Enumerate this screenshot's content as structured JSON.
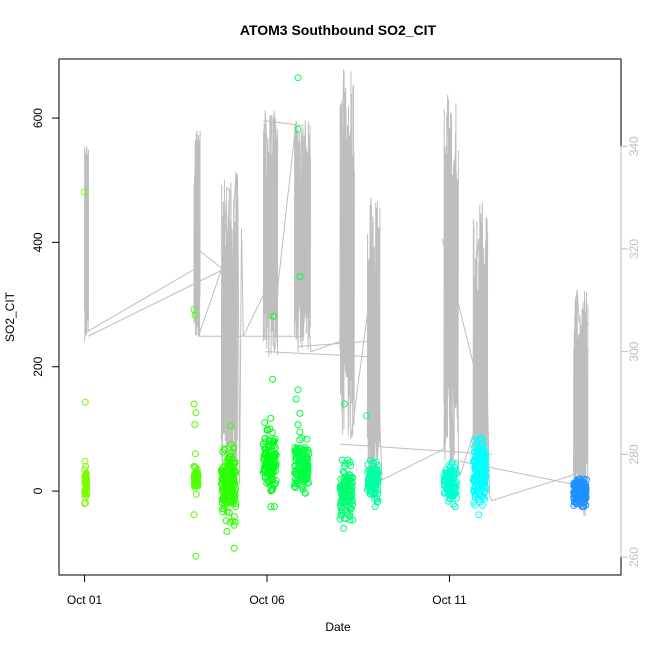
{
  "chart_data": {
    "type": "scatter",
    "title": "ATOM3 Southbound SO2_CIT",
    "xlabel": "Date",
    "ylabel": "SO2_CIT",
    "x_unit": "days from Oct 01",
    "xlim": [
      -0.7,
      14.7
    ],
    "ylim": [
      -135,
      695
    ],
    "x_ticks": [
      {
        "value": 0,
        "label": "Oct 01"
      },
      {
        "value": 5,
        "label": "Oct 06"
      },
      {
        "value": 10,
        "label": "Oct 11"
      }
    ],
    "y_ticks": [
      0,
      200,
      400,
      600
    ],
    "y2lim": [
      256.5,
      357
    ],
    "y2_ticks": [
      260,
      280,
      300,
      320,
      340
    ],
    "y2_color": "#bebebe",
    "colors": {
      "line": "#bebebe",
      "point_palette": [
        "#7cfc00",
        "#00ff40",
        "#00ff9f",
        "#00ffff",
        "#1e90ff"
      ]
    },
    "flights": [
      {
        "x_start": 0.0,
        "x_end": 0.06,
        "y_min": -20,
        "y_max": 48,
        "count": 45,
        "color": "#7cfc00",
        "extremes": [
          [
            0.0,
            481
          ],
          [
            0.02,
            143
          ]
        ]
      },
      {
        "x_start": 3.0,
        "x_end": 3.12,
        "y_min": -5,
        "y_max": 40,
        "count": 45,
        "color": "#52ff00",
        "extremes": [
          [
            3.0,
            292
          ],
          [
            3.03,
            283
          ],
          [
            3.0,
            140
          ],
          [
            3.05,
            126
          ],
          [
            3.02,
            107
          ],
          [
            3.04,
            60
          ],
          [
            3.0,
            -38
          ],
          [
            3.05,
            -105
          ]
        ]
      },
      {
        "x_start": 3.75,
        "x_end": 4.15,
        "y_min": -50,
        "y_max": 70,
        "count": 160,
        "color": "#2bff00",
        "extremes": [
          [
            4.0,
            105
          ],
          [
            4.02,
            75
          ],
          [
            4.1,
            -92
          ],
          [
            3.9,
            -65
          ],
          [
            4.1,
            -55
          ]
        ]
      },
      {
        "x_start": 4.9,
        "x_end": 5.25,
        "y_min": -25,
        "y_max": 110,
        "count": 120,
        "color": "#00ff1a",
        "extremes": [
          [
            5.18,
            281
          ],
          [
            5.15,
            180
          ],
          [
            5.1,
            117
          ],
          [
            5.08,
            100
          ],
          [
            5.0,
            98
          ],
          [
            5.2,
            80
          ]
        ]
      },
      {
        "x_start": 5.75,
        "x_end": 6.15,
        "y_min": -5,
        "y_max": 85,
        "count": 130,
        "color": "#00ff40",
        "extremes": [
          [
            5.85,
            665
          ],
          [
            5.85,
            582
          ],
          [
            5.9,
            345
          ],
          [
            5.85,
            163
          ],
          [
            5.8,
            148
          ],
          [
            5.9,
            125
          ],
          [
            5.85,
            107
          ],
          [
            5.9,
            95
          ]
        ]
      },
      {
        "x_start": 7.0,
        "x_end": 7.35,
        "y_min": -55,
        "y_max": 50,
        "count": 120,
        "color": "#00ff70",
        "extremes": [
          [
            7.12,
            140
          ],
          [
            7.1,
            -60
          ],
          [
            7.0,
            -45
          ],
          [
            7.05,
            -35
          ]
        ]
      },
      {
        "x_start": 7.75,
        "x_end": 8.05,
        "y_min": -25,
        "y_max": 60,
        "count": 110,
        "color": "#00ffa0",
        "extremes": [
          [
            7.72,
            121
          ]
        ]
      },
      {
        "x_start": 9.85,
        "x_end": 10.2,
        "y_min": -25,
        "y_max": 48,
        "count": 100,
        "color": "#00ffcf",
        "extremes": [
          [
            10.15,
            42
          ]
        ]
      },
      {
        "x_start": 10.65,
        "x_end": 11.0,
        "y_min": -35,
        "y_max": 90,
        "count": 170,
        "color": "#00ffff",
        "extremes": [
          [
            10.85,
            85
          ],
          [
            10.9,
            75
          ],
          [
            10.8,
            -38
          ]
        ]
      },
      {
        "x_start": 13.4,
        "x_end": 13.75,
        "y_min": -25,
        "y_max": 22,
        "count": 170,
        "color": "#1e90ff",
        "extremes": []
      }
    ],
    "line_series": {
      "name": "",
      "scale": "right",
      "points": [
        [
          0.0,
          302
        ],
        [
          0.03,
          305
        ],
        [
          0.04,
          338
        ],
        [
          0.06,
          340
        ],
        [
          0.08,
          330
        ],
        [
          0.1,
          304
        ],
        [
          3.0,
          316
        ],
        [
          3.05,
          321
        ],
        [
          3.08,
          343
        ],
        [
          3.1,
          320
        ],
        [
          3.12,
          303
        ],
        [
          3.8,
          317
        ],
        [
          3.9,
          332
        ],
        [
          4.0,
          331
        ],
        [
          4.05,
          310
        ],
        [
          4.1,
          329
        ],
        [
          4.15,
          335
        ],
        [
          4.2,
          330
        ],
        [
          4.25,
          274
        ],
        [
          4.3,
          324
        ],
        [
          4.35,
          303
        ],
        [
          4.9,
          311
        ],
        [
          4.95,
          347
        ],
        [
          5.0,
          340
        ],
        [
          5.05,
          299
        ],
        [
          5.1,
          346
        ],
        [
          5.15,
          338
        ],
        [
          5.2,
          300
        ],
        [
          5.25,
          302
        ],
        [
          5.3,
          313
        ],
        [
          5.8,
          345
        ],
        [
          5.82,
          320
        ],
        [
          5.85,
          300
        ],
        [
          5.9,
          335
        ],
        [
          5.95,
          343
        ],
        [
          6.0,
          322
        ],
        [
          6.05,
          345
        ],
        [
          6.1,
          313
        ],
        [
          6.15,
          306
        ],
        [
          6.2,
          300
        ],
        [
          7.0,
          302
        ],
        [
          7.05,
          330
        ],
        [
          7.1,
          355
        ],
        [
          7.15,
          325
        ],
        [
          7.2,
          302
        ],
        [
          7.25,
          310
        ],
        [
          7.3,
          283
        ],
        [
          7.8,
          310
        ],
        [
          7.85,
          330
        ],
        [
          7.9,
          320
        ],
        [
          7.95,
          295
        ],
        [
          8.0,
          328
        ],
        [
          8.05,
          296
        ],
        [
          8.1,
          285
        ],
        [
          8.15,
          275
        ],
        [
          9.85,
          281
        ],
        [
          9.9,
          330
        ],
        [
          9.95,
          350
        ],
        [
          10.0,
          321
        ],
        [
          10.05,
          300
        ],
        [
          10.1,
          279
        ],
        [
          10.15,
          298
        ],
        [
          10.2,
          319
        ],
        [
          10.25,
          277
        ],
        [
          10.3,
          276
        ],
        [
          10.7,
          285
        ],
        [
          10.75,
          318
        ],
        [
          10.8,
          322
        ],
        [
          10.85,
          302
        ],
        [
          10.9,
          329
        ],
        [
          10.95,
          289
        ],
        [
          11.0,
          315
        ],
        [
          11.05,
          288
        ],
        [
          11.1,
          272
        ],
        [
          11.15,
          271
        ],
        [
          13.4,
          276
        ],
        [
          13.45,
          309
        ],
        [
          13.5,
          312
        ],
        [
          13.55,
          306
        ],
        [
          13.6,
          305
        ],
        [
          13.65,
          302
        ],
        [
          13.7,
          289
        ],
        [
          13.72,
          268
        ],
        [
          13.75,
          306
        ],
        [
          13.8,
          305
        ]
      ]
    },
    "connector_lines": [
      [
        [
          0.1,
          303
        ],
        [
          3.8,
          316
        ]
      ],
      [
        [
          3.1,
          320
        ],
        [
          3.8,
          316
        ]
      ],
      [
        [
          3.12,
          303
        ],
        [
          5.95,
          303
        ]
      ],
      [
        [
          4.9,
          345
        ],
        [
          6.0,
          344
        ]
      ],
      [
        [
          4.95,
          300
        ],
        [
          7.85,
          299
        ]
      ],
      [
        [
          5.85,
          301
        ],
        [
          7.8,
          302
        ]
      ],
      [
        [
          7.0,
          282
        ],
        [
          11.15,
          280
        ]
      ],
      [
        [
          9.8,
          322
        ],
        [
          10.85,
          292
        ]
      ],
      [
        [
          10.05,
          279
        ],
        [
          13.5,
          274
        ]
      ]
    ]
  }
}
